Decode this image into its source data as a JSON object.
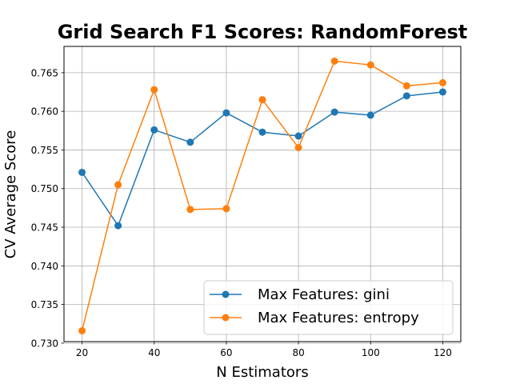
{
  "chart_data": {
    "type": "line",
    "title": "Grid Search F1 Scores: RandomForest",
    "xlabel": "N Estimators",
    "ylabel": "CV Average Score",
    "x": [
      20,
      30,
      40,
      50,
      60,
      70,
      80,
      90,
      100,
      110,
      120
    ],
    "xlim": [
      15,
      125
    ],
    "ylim": [
      0.7302,
      0.7684
    ],
    "xticks": [
      20,
      40,
      60,
      80,
      100,
      120
    ],
    "yticks": [
      0.73,
      0.735,
      0.74,
      0.745,
      0.75,
      0.755,
      0.76,
      0.765
    ],
    "grid": true,
    "legend_position": "lower-right",
    "series": [
      {
        "name": "Max Features: gini",
        "color": "#1f77b4",
        "values": [
          0.7521,
          0.7452,
          0.7576,
          0.756,
          0.7598,
          0.7573,
          0.7568,
          0.7599,
          0.7595,
          0.762,
          0.7625
        ]
      },
      {
        "name": "Max Features: entropy",
        "color": "#ff7f0e",
        "values": [
          0.7316,
          0.7505,
          0.7628,
          0.7473,
          0.7474,
          0.7615,
          0.7553,
          0.7665,
          0.766,
          0.7633,
          0.7637
        ]
      }
    ]
  }
}
